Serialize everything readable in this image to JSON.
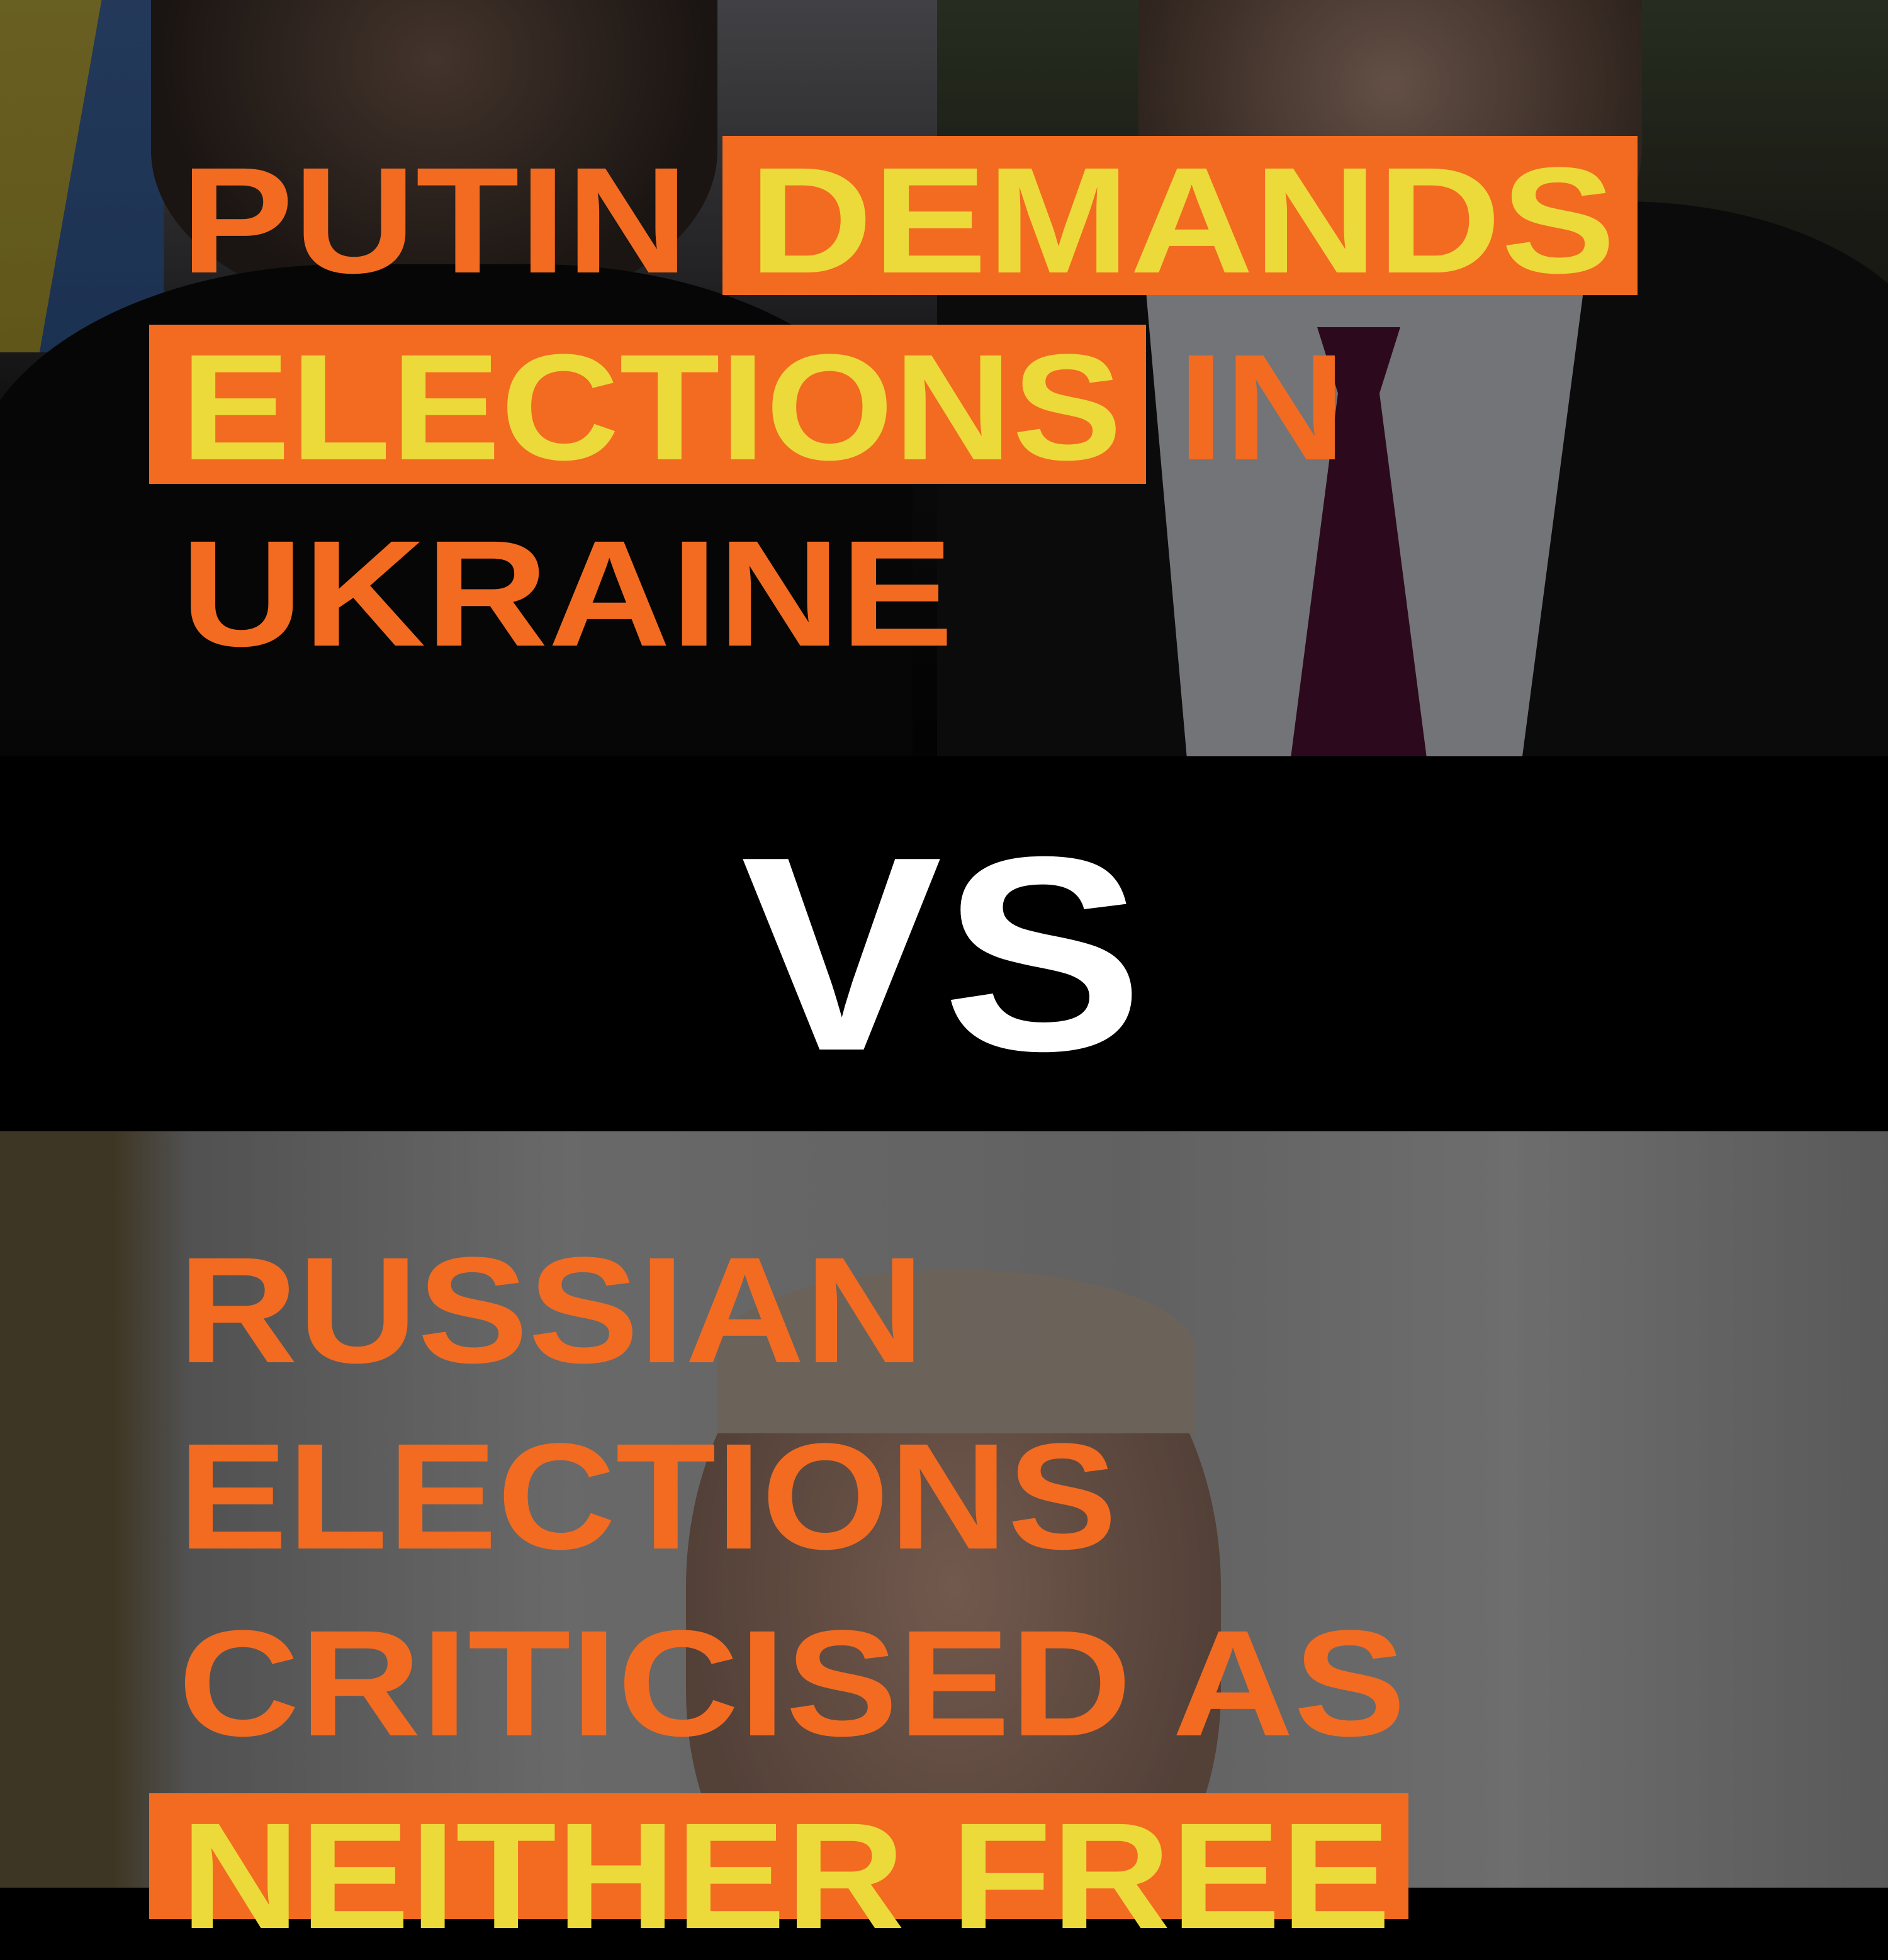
{
  "colors": {
    "orange": "#F26B21",
    "yellow": "#ECD93A",
    "band": "#000000",
    "vs": "#FFFFFF"
  },
  "top_headline": {
    "line1": [
      "PUTIN",
      "DEMANDS"
    ],
    "line2": [
      "ELECTIONS",
      "IN"
    ],
    "line3": [
      "UKRAINE"
    ],
    "highlighted_words": [
      "DEMANDS",
      "ELECTIONS"
    ]
  },
  "divider": {
    "label": "VS"
  },
  "bottom_headline": {
    "line1": "RUSSIAN",
    "line2": "ELECTIONS",
    "line3": "CRITICISED AS",
    "line4": "NEITHER FREE",
    "highlighted_words": [
      "NEITHER FREE"
    ]
  }
}
